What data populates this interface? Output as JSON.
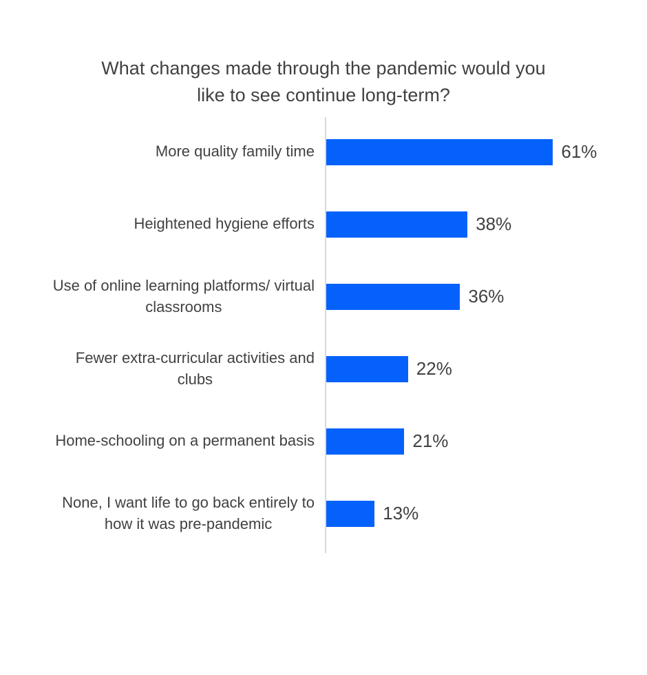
{
  "chart_data": {
    "type": "bar",
    "orientation": "horizontal",
    "title": "What changes made through the pandemic would you\nlike to see continue long-term?",
    "categories": [
      "More quality family time",
      "Heightened hygiene efforts",
      "Use of online learning platforms/ virtual\nclassrooms",
      "Fewer extra-curricular activities and\nclubs",
      "Home-schooling on a permanent basis",
      "None, I want life to go back entirely to\nhow it was pre-pandemic"
    ],
    "values": [
      61,
      38,
      36,
      22,
      21,
      13
    ],
    "value_labels": [
      "61%",
      "38%",
      "36%",
      "22%",
      "21%",
      "13%"
    ],
    "xlabel": "",
    "ylabel": "",
    "xlim": [
      0,
      100
    ],
    "grid": false,
    "legend": false,
    "bar_color": "#0561fb",
    "axis_line_color": "#d9d9d9",
    "text_color": "#414141"
  }
}
